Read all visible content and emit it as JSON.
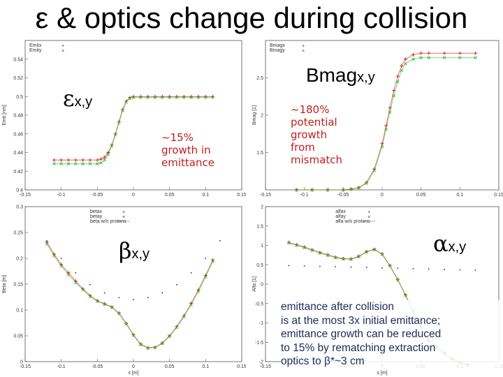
{
  "slide": {
    "title": "ε & optics change during collision",
    "note": "emittance after collision\nis at the most 3x initial emittance;\nemittance growth can be reduced\nto 15% by rematching extraction\noptics to β*~3 cm"
  },
  "labels": {
    "eps": {
      "sym": "ε",
      "sub": "x,y"
    },
    "bmag": {
      "sym": "Bmag",
      "sub": "x,y"
    },
    "beta": {
      "sym": "β",
      "sub": "x,y"
    },
    "alfa": {
      "sym": "α",
      "sub": "x,y"
    }
  },
  "annotations": {
    "eps_growth": "~15%\ngrowth in\nemittance",
    "bmag_growth": "~180%\npotential\ngrowth\nfrom\nmismatch"
  },
  "colors": {
    "series_x": "#e0101a",
    "series_y": "#2ab82a",
    "series_ref": "#1a1a9a",
    "note_text": "#1f2a5a",
    "annotation": "#c0201d"
  },
  "chart_data": [
    {
      "id": "emit",
      "type": "scatter",
      "title": "",
      "xlabel": "",
      "ylabel": "Emit [nm]",
      "xlim": [
        -0.15,
        0.15
      ],
      "ylim": [
        0.4,
        0.56
      ],
      "xticks": [
        -0.15,
        -0.1,
        -0.05,
        0,
        0.05,
        0.1,
        0.15
      ],
      "xtick_labels": [
        "-0.15",
        "-0.1",
        "-0.05",
        "0",
        "0.05",
        "0.1",
        "0.15"
      ],
      "yticks": [
        0.4,
        0.42,
        0.44,
        0.46,
        0.48,
        0.5,
        0.52,
        0.54
      ],
      "ytick_labels": [
        "0.4",
        "0.42",
        "0.44",
        "0.46",
        "0.48",
        "0.5",
        "0.52",
        "0.54"
      ],
      "legend_position": "top-left",
      "series": [
        {
          "name": "Emitx",
          "marker": "+",
          "x": [
            -0.11,
            -0.1,
            -0.09,
            -0.08,
            -0.07,
            -0.06,
            -0.05,
            -0.045,
            -0.04,
            -0.035,
            -0.03,
            -0.025,
            -0.02,
            -0.015,
            -0.01,
            -0.005,
            0,
            0.01,
            0.02,
            0.03,
            0.04,
            0.05,
            0.06,
            0.07,
            0.08,
            0.09,
            0.1,
            0.11
          ],
          "y": [
            0.432,
            0.432,
            0.432,
            0.432,
            0.432,
            0.432,
            0.432,
            0.433,
            0.435,
            0.44,
            0.448,
            0.46,
            0.473,
            0.486,
            0.495,
            0.499,
            0.5,
            0.5,
            0.5,
            0.5,
            0.5,
            0.5,
            0.5,
            0.5,
            0.5,
            0.5,
            0.5,
            0.5
          ]
        },
        {
          "name": "Emity",
          "marker": "x",
          "x": [
            -0.11,
            -0.1,
            -0.09,
            -0.08,
            -0.07,
            -0.06,
            -0.05,
            -0.045,
            -0.04,
            -0.035,
            -0.03,
            -0.025,
            -0.02,
            -0.015,
            -0.01,
            -0.005,
            0,
            0.01,
            0.02,
            0.03,
            0.04,
            0.05,
            0.06,
            0.07,
            0.08,
            0.09,
            0.1,
            0.11
          ],
          "y": [
            0.428,
            0.428,
            0.428,
            0.428,
            0.428,
            0.428,
            0.428,
            0.429,
            0.432,
            0.438,
            0.447,
            0.459,
            0.472,
            0.485,
            0.494,
            0.498,
            0.499,
            0.499,
            0.499,
            0.499,
            0.499,
            0.499,
            0.499,
            0.499,
            0.499,
            0.499,
            0.499,
            0.499
          ]
        }
      ]
    },
    {
      "id": "bmag",
      "type": "scatter",
      "title": "",
      "xlabel": "",
      "ylabel": "Bmag [1]",
      "xlim": [
        -0.15,
        0.15
      ],
      "ylim": [
        1,
        3
      ],
      "xticks": [
        -0.15,
        -0.1,
        -0.05,
        0,
        0.05,
        0.1,
        0.15
      ],
      "xtick_labels": [
        "-0.15",
        "-0.1",
        "-0.05",
        "0",
        "0.05",
        "0.1",
        "0.15"
      ],
      "yticks": [
        1.5,
        2,
        2.5
      ],
      "ytick_labels": [
        "1.5",
        "2",
        "2.5"
      ],
      "legend_position": "top-left",
      "series": [
        {
          "name": "Bmagx",
          "marker": "+",
          "x": [
            -0.11,
            -0.09,
            -0.07,
            -0.05,
            -0.04,
            -0.03,
            -0.02,
            -0.01,
            0,
            0.005,
            0.01,
            0.015,
            0.02,
            0.025,
            0.03,
            0.04,
            0.05,
            0.06,
            0.08,
            0.1,
            0.12
          ],
          "y": [
            1.0,
            1.0,
            1.0,
            1.0,
            1.01,
            1.03,
            1.1,
            1.28,
            1.62,
            1.86,
            2.1,
            2.33,
            2.52,
            2.66,
            2.75,
            2.81,
            2.83,
            2.83,
            2.83,
            2.83,
            2.83
          ]
        },
        {
          "name": "Bmagy",
          "marker": "x",
          "x": [
            -0.11,
            -0.09,
            -0.07,
            -0.05,
            -0.04,
            -0.03,
            -0.02,
            -0.01,
            0,
            0.005,
            0.01,
            0.015,
            0.02,
            0.025,
            0.03,
            0.04,
            0.05,
            0.06,
            0.08,
            0.1,
            0.12
          ],
          "y": [
            1.0,
            1.0,
            1.0,
            1.0,
            1.01,
            1.03,
            1.09,
            1.26,
            1.58,
            1.81,
            2.04,
            2.26,
            2.45,
            2.6,
            2.69,
            2.75,
            2.77,
            2.77,
            2.77,
            2.77,
            2.77
          ]
        }
      ]
    },
    {
      "id": "beta",
      "type": "scatter",
      "title": "",
      "xlabel": "s [m]",
      "ylabel": "Beta [m]",
      "xlim": [
        -0.15,
        0.15
      ],
      "ylim": [
        0,
        0.3
      ],
      "xticks": [
        -0.15,
        -0.1,
        -0.05,
        0,
        0.05,
        0.1,
        0.15
      ],
      "xtick_labels": [
        "-0.15",
        "-0.1",
        "-0.05",
        "0",
        "0.05",
        "0.1",
        "0.15"
      ],
      "yticks": [
        0,
        0.05,
        0.1,
        0.15,
        0.2,
        0.25,
        0.3
      ],
      "ytick_labels": [
        "0",
        "0.05",
        "0.1",
        "0.15",
        "0.2",
        "0.25",
        "0.3"
      ],
      "legend_position": "top-right",
      "series": [
        {
          "name": "betax",
          "marker": "+",
          "x": [
            -0.12,
            -0.11,
            -0.1,
            -0.09,
            -0.08,
            -0.07,
            -0.06,
            -0.05,
            -0.04,
            -0.03,
            -0.02,
            -0.01,
            0,
            0.01,
            0.02,
            0.03,
            0.04,
            0.05,
            0.06,
            0.07,
            0.08,
            0.09,
            0.1,
            0.11
          ],
          "y": [
            0.232,
            0.208,
            0.188,
            0.172,
            0.156,
            0.141,
            0.128,
            0.118,
            0.112,
            0.106,
            0.094,
            0.074,
            0.052,
            0.034,
            0.027,
            0.028,
            0.036,
            0.05,
            0.068,
            0.089,
            0.113,
            0.139,
            0.167,
            0.197
          ]
        },
        {
          "name": "betay",
          "marker": "x",
          "x": [
            -0.12,
            -0.11,
            -0.1,
            -0.09,
            -0.08,
            -0.07,
            -0.06,
            -0.05,
            -0.04,
            -0.03,
            -0.02,
            -0.01,
            0,
            0.01,
            0.02,
            0.03,
            0.04,
            0.05,
            0.06,
            0.07,
            0.08,
            0.09,
            0.1,
            0.11
          ],
          "y": [
            0.228,
            0.205,
            0.185,
            0.168,
            0.153,
            0.139,
            0.126,
            0.117,
            0.111,
            0.105,
            0.093,
            0.073,
            0.051,
            0.033,
            0.026,
            0.027,
            0.035,
            0.049,
            0.066,
            0.087,
            0.11,
            0.136,
            0.164,
            0.194
          ]
        },
        {
          "name": "beta w/o protons",
          "marker": "dot",
          "x": [
            -0.12,
            -0.1,
            -0.08,
            -0.06,
            -0.04,
            -0.02,
            0,
            0.02,
            0.04,
            0.06,
            0.08,
            0.1,
            0.12
          ],
          "y": [
            0.234,
            0.2,
            0.172,
            0.149,
            0.133,
            0.124,
            0.12,
            0.124,
            0.133,
            0.149,
            0.172,
            0.2,
            0.234
          ]
        }
      ]
    },
    {
      "id": "alfa",
      "type": "scatter",
      "title": "",
      "xlabel": "s [m]",
      "ylabel": "Alfa [1]",
      "xlim": [
        -0.15,
        0.15
      ],
      "ylim": [
        -2,
        2
      ],
      "xticks": [
        -0.15,
        -0.1,
        -0.05,
        0,
        0.05,
        0.1,
        0.15
      ],
      "xtick_labels": [
        "-0.15",
        "-0.1",
        "-0.05",
        "0",
        "0.05",
        "0.1",
        "0.15"
      ],
      "yticks": [
        -2,
        -1.5,
        -1,
        -0.5,
        0,
        0.5,
        1,
        1.5,
        2
      ],
      "ytick_labels": [
        "-2",
        "-1.5",
        "-1",
        "-0.5",
        "0",
        "0.5",
        "1",
        "1.5",
        "2"
      ],
      "legend_position": "top-right",
      "series": [
        {
          "name": "alfax",
          "marker": "+",
          "x": [
            -0.12,
            -0.11,
            -0.1,
            -0.09,
            -0.08,
            -0.07,
            -0.06,
            -0.05,
            -0.04,
            -0.03,
            -0.02,
            -0.01,
            0,
            0.01,
            0.02,
            0.03,
            0.04,
            0.05,
            0.06,
            0.07,
            0.08,
            0.09,
            0.1,
            0.11
          ],
          "y": [
            1.08,
            1.02,
            0.96,
            0.89,
            0.82,
            0.76,
            0.7,
            0.66,
            0.65,
            0.72,
            0.84,
            0.9,
            0.78,
            0.48,
            0.12,
            -0.28,
            -0.7,
            -1.1,
            -1.45,
            -1.62,
            -1.78,
            -1.92,
            -2.02,
            -2.08
          ]
        },
        {
          "name": "alfay",
          "marker": "x",
          "x": [
            -0.12,
            -0.11,
            -0.1,
            -0.09,
            -0.08,
            -0.07,
            -0.06,
            -0.05,
            -0.04,
            -0.03,
            -0.02,
            -0.01,
            0,
            0.01,
            0.02,
            0.03,
            0.04,
            0.05,
            0.06,
            0.07,
            0.08,
            0.09,
            0.1,
            0.11
          ],
          "y": [
            1.06,
            1.0,
            0.94,
            0.87,
            0.8,
            0.74,
            0.68,
            0.65,
            0.64,
            0.71,
            0.83,
            0.89,
            0.77,
            0.47,
            0.11,
            -0.29,
            -0.71,
            -1.11,
            -1.46,
            -1.63,
            -1.79,
            -1.93,
            -2.03,
            -2.09
          ]
        },
        {
          "name": "alfa w/o protons",
          "marker": "dot",
          "x": [
            -0.12,
            -0.1,
            -0.08,
            -0.06,
            -0.04,
            -0.02,
            0,
            0.02,
            0.04,
            0.06,
            0.08,
            0.1,
            0.12
          ],
          "y": [
            0.48,
            0.47,
            0.46,
            0.45,
            0.44,
            0.43,
            0.42,
            0.41,
            0.4,
            0.39,
            0.38,
            0.37,
            0.36
          ]
        }
      ]
    }
  ]
}
